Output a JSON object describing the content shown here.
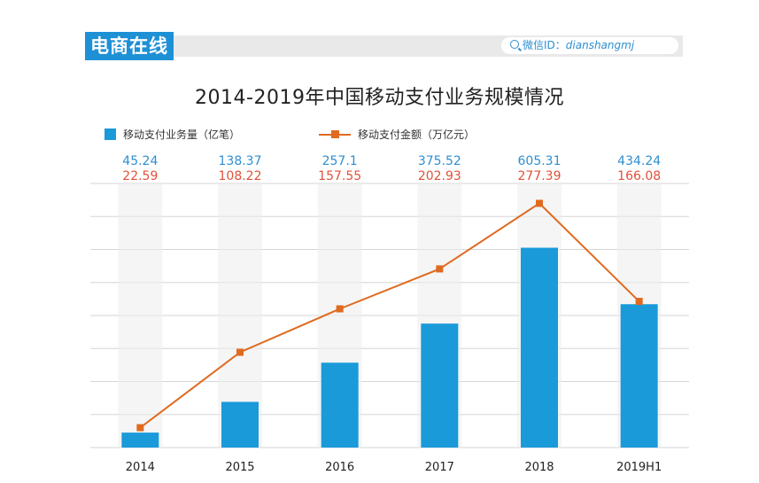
{
  "header": {
    "brand": "电商在线",
    "wechat_label": "微信ID：",
    "wechat_id": "dianshangmj",
    "brand_color": "#1e90d6"
  },
  "chart_data": {
    "type": "bar",
    "title": "2014-2019年中国移动支付业务规模情况",
    "categories": [
      "2014",
      "2015",
      "2016",
      "2017",
      "2018",
      "2019H1"
    ],
    "series": [
      {
        "name": "移动支付业务量（亿笔）",
        "type": "bar",
        "values": [
          45.24,
          138.37,
          257.1,
          375.52,
          605.31,
          434.24
        ],
        "labels": [
          "45.24",
          "138.37",
          "257.1",
          "375.52",
          "605.31",
          "434.24"
        ],
        "color": "#1a9ad9"
      },
      {
        "name": "移动支付金额（万亿元）",
        "type": "line",
        "values": [
          22.59,
          108.22,
          157.55,
          202.93,
          277.39,
          166.08
        ],
        "labels": [
          "22.59",
          "108.22",
          "157.55",
          "202.93",
          "277.39",
          "166.08"
        ],
        "color": "#e06a1f"
      }
    ],
    "bar_ylim": [
      0,
      800
    ],
    "line_ylim": [
      0,
      300
    ],
    "grid": true,
    "legend": "top-left"
  }
}
